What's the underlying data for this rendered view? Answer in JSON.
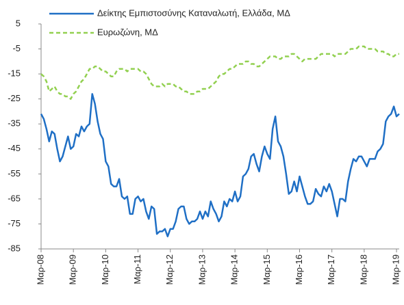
{
  "chart_data": {
    "type": "line",
    "categories": [
      "Μαρ-08",
      null,
      null,
      null,
      null,
      null,
      null,
      null,
      null,
      null,
      null,
      null,
      "Μαρ-09",
      null,
      null,
      null,
      null,
      null,
      null,
      null,
      null,
      null,
      null,
      null,
      "Μαρ-10",
      null,
      null,
      null,
      null,
      null,
      null,
      null,
      null,
      null,
      null,
      null,
      "Μαρ-11",
      null,
      null,
      null,
      null,
      null,
      null,
      null,
      null,
      null,
      null,
      null,
      "Μαρ-12",
      null,
      null,
      null,
      null,
      null,
      null,
      null,
      null,
      null,
      null,
      null,
      "Μαρ-13",
      null,
      null,
      null,
      null,
      null,
      null,
      null,
      null,
      null,
      null,
      null,
      "Μαρ-14",
      null,
      null,
      null,
      null,
      null,
      null,
      null,
      null,
      null,
      null,
      null,
      "Μαρ-15",
      null,
      null,
      null,
      null,
      null,
      null,
      null,
      null,
      null,
      null,
      null,
      "Μαρ-16",
      null,
      null,
      null,
      null,
      null,
      null,
      null,
      null,
      null,
      null,
      null,
      "Μαρ-17",
      null,
      null,
      null,
      null,
      null,
      null,
      null,
      null,
      null,
      null,
      null,
      "Μαρ-18",
      null,
      null,
      null,
      null,
      null,
      null,
      null,
      null,
      null,
      null,
      null,
      "Μαρ-19",
      null
    ],
    "series": [
      {
        "name": "Δείκτης Εμπιστοσύνης Καταναλωτή, Ελλάδα, ΜΔ",
        "color": "#1f6fc5",
        "dashed": false,
        "values": [
          -31,
          -33,
          -37,
          -42,
          -38,
          -39,
          -45,
          -50,
          -48,
          -44,
          -40,
          -45,
          -44,
          -39,
          -40,
          -36,
          -38,
          -36,
          -35,
          -23,
          -27,
          -34,
          -39,
          -41,
          -50,
          -52,
          -59,
          -60,
          -60,
          -57,
          -64,
          -65,
          -64,
          -71,
          -71,
          -65,
          -64,
          -66,
          -65,
          -70,
          -73,
          -68,
          -69,
          -79,
          -78,
          -78,
          -77,
          -80,
          -77,
          -77,
          -74,
          -69,
          -68,
          -68,
          -73,
          -75,
          -74,
          -74,
          -73,
          -70,
          -73,
          -70,
          -72,
          -66,
          -69,
          -71,
          -74,
          -72,
          -66,
          -68,
          -65,
          -66,
          -62,
          -66,
          -64,
          -56,
          -55,
          -53,
          -48,
          -47,
          -51,
          -54,
          -48,
          -44,
          -47,
          -49,
          -37,
          -32,
          -42,
          -44,
          -48,
          -55,
          -63,
          -62,
          -58,
          -62,
          -56,
          -60,
          -64,
          -67,
          -67,
          -66,
          -61,
          -63,
          -64,
          -60,
          -62,
          -59,
          -62,
          -67,
          -72,
          -65,
          -65,
          -66,
          -58,
          -53,
          -49,
          -50,
          -48,
          -48,
          -50,
          -52,
          -49,
          -49,
          -49,
          -46,
          -45,
          -43,
          -34,
          -32,
          -31,
          -28,
          -32,
          -31
        ]
      },
      {
        "name": "Ευρωζώνη, ΜΔ",
        "color": "#92d050",
        "dashed": true,
        "values": [
          -15,
          -16,
          -18,
          -22,
          -21,
          -20,
          -22,
          -23,
          -23,
          -24,
          -24,
          -25,
          -23,
          -22,
          -20,
          -18,
          -17,
          -15,
          -13,
          -13,
          -12,
          -12,
          -13,
          -14,
          -14,
          -15,
          -16,
          -16,
          -14,
          -13,
          -13,
          -13,
          -14,
          -13,
          -13,
          -13,
          -13,
          -14,
          -14,
          -15,
          -17,
          -19,
          -20,
          -20,
          -20,
          -19,
          -20,
          -19,
          -19,
          -19,
          -20,
          -20,
          -21,
          -22,
          -22,
          -23,
          -23,
          -23,
          -22,
          -22,
          -21,
          -21,
          -21,
          -20,
          -19,
          -18,
          -16,
          -15,
          -15,
          -14,
          -13,
          -13,
          -12,
          -11,
          -11,
          -11,
          -10,
          -10,
          -11,
          -11,
          -12,
          -12,
          -11,
          -10,
          -9,
          -8,
          -8,
          -8,
          -9,
          -9,
          -8,
          -8,
          -8,
          -7,
          -7,
          -8,
          -9,
          -10,
          -9,
          -9,
          -9,
          -9,
          -9,
          -8,
          -7,
          -7,
          -7,
          -7,
          -7,
          -8,
          -7,
          -7,
          -7,
          -7,
          -6,
          -5,
          -5,
          -5,
          -4,
          -4,
          -4,
          -5,
          -5,
          -5,
          -5,
          -6,
          -6,
          -6,
          -7,
          -7,
          -8,
          -8,
          -7,
          -7
        ]
      }
    ],
    "ylim": [
      -85,
      5
    ],
    "yticks": [
      5,
      -5,
      -15,
      -25,
      -35,
      -45,
      -55,
      -65,
      -75,
      -85
    ],
    "grid": false
  }
}
